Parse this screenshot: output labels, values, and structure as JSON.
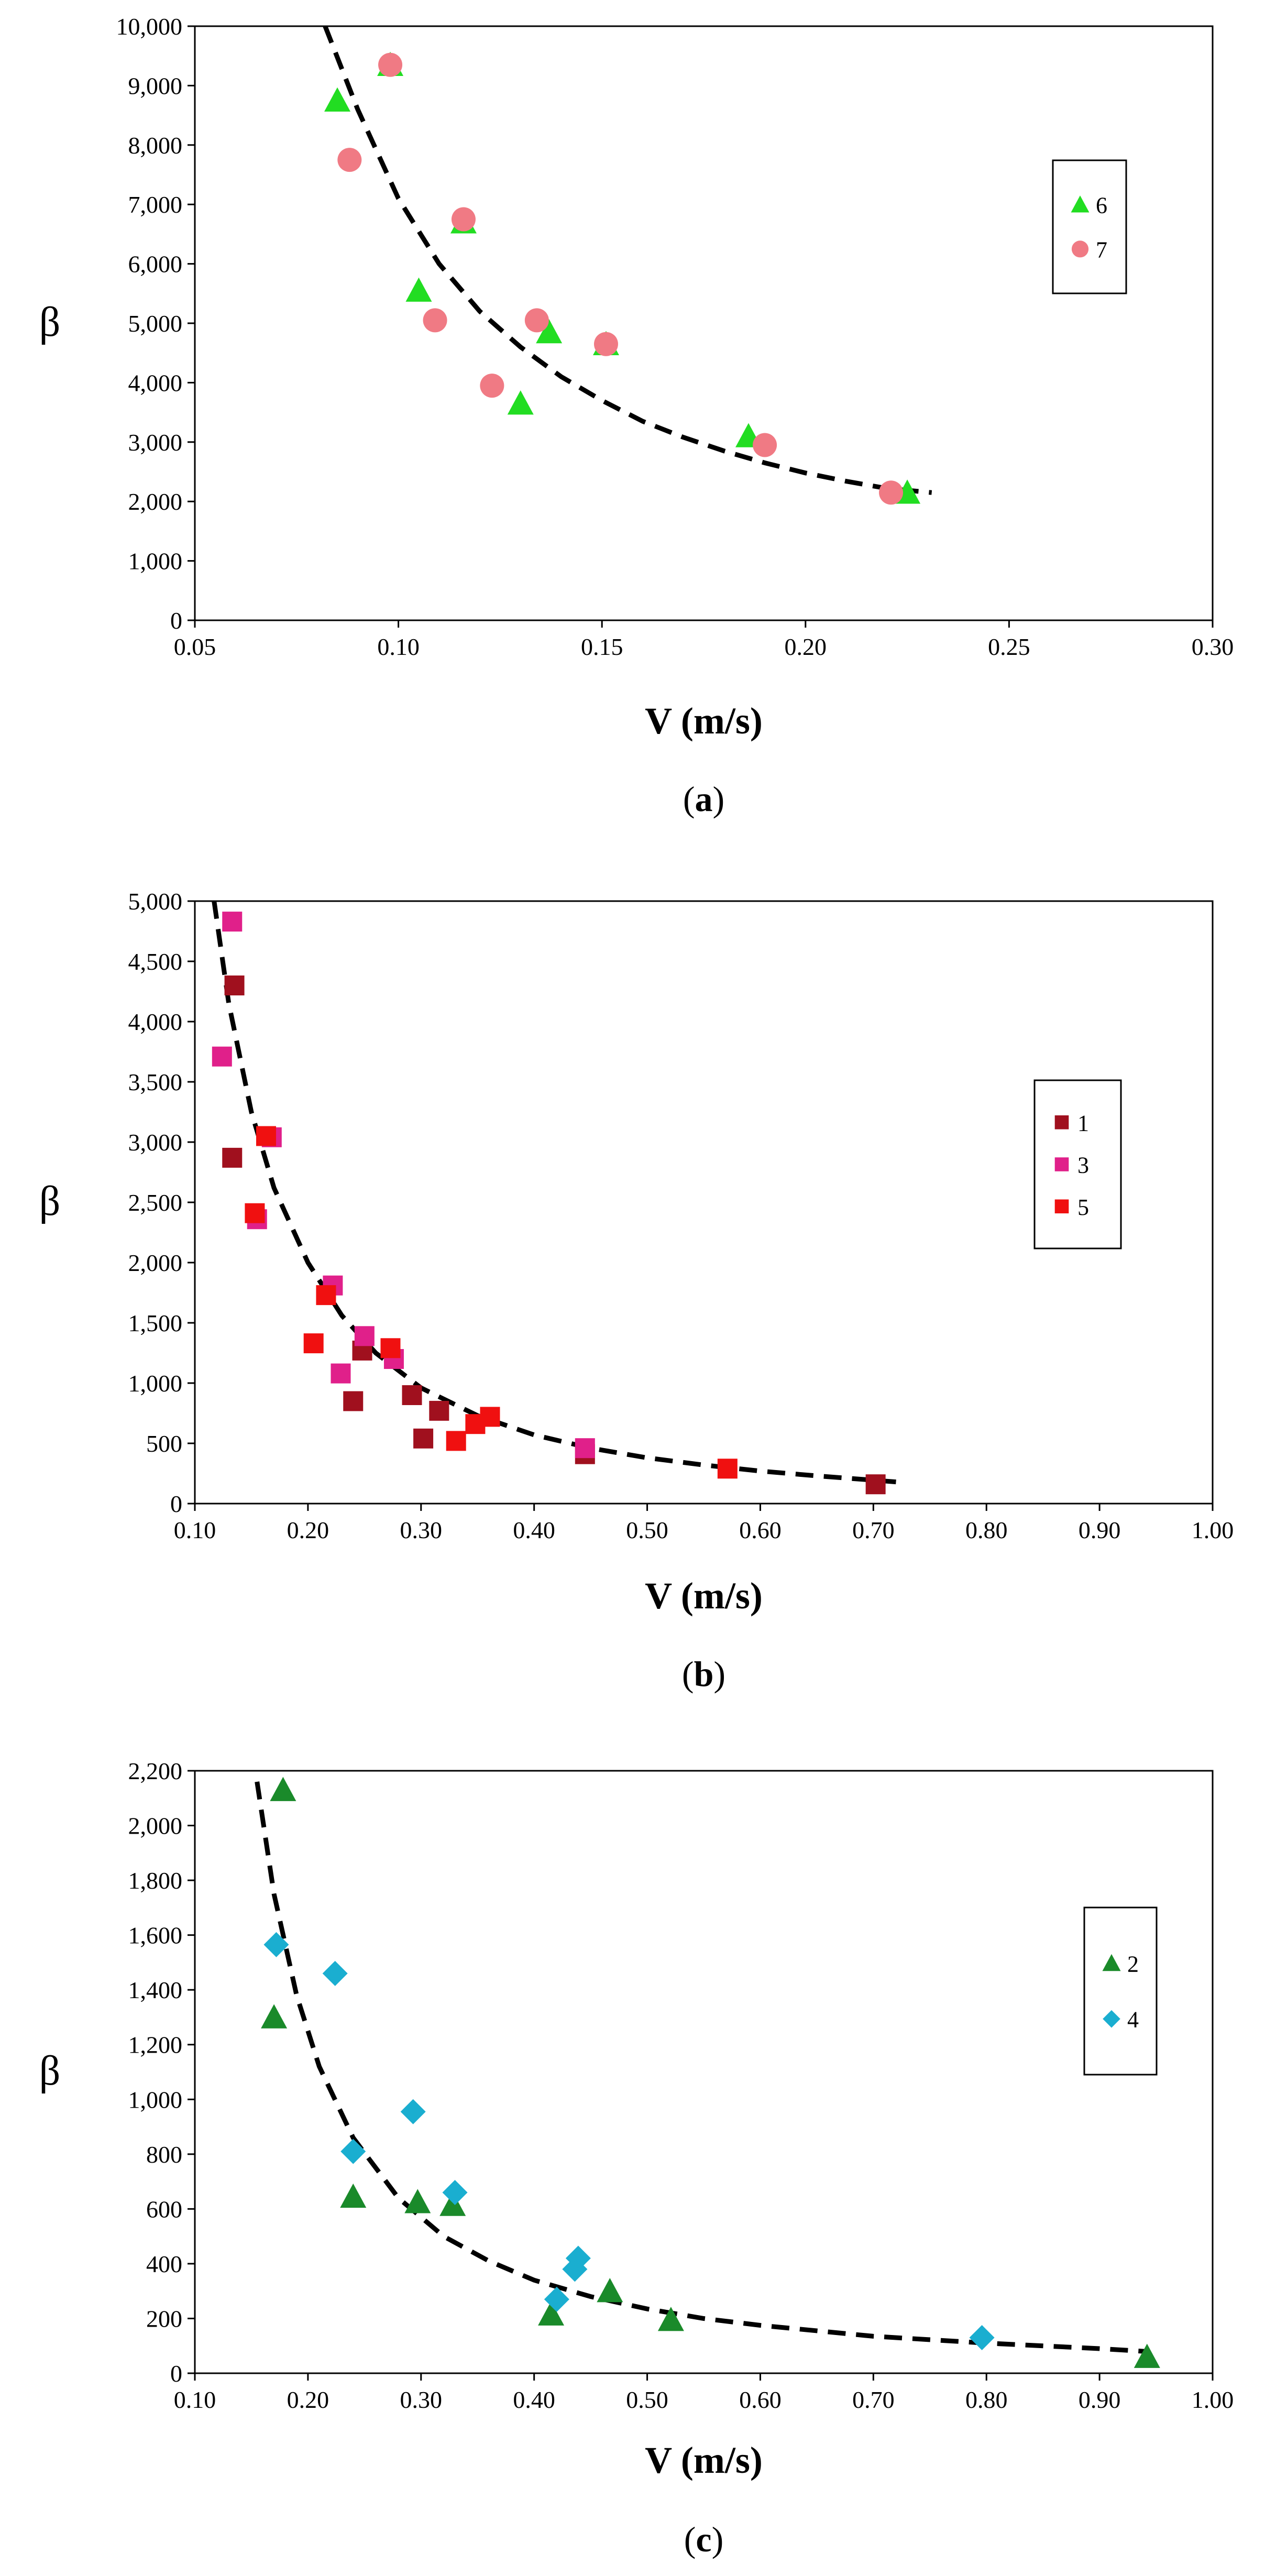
{
  "figure": {
    "panels": [
      {
        "id": "a",
        "label": "(a)",
        "letter": "a"
      },
      {
        "id": "b",
        "label": "(b)",
        "letter": "b"
      },
      {
        "id": "c",
        "label": "(c)",
        "letter": "c"
      }
    ]
  },
  "chart_data": [
    {
      "panel": "(a)",
      "type": "scatter",
      "xlabel": "V (m/s)",
      "ylabel": "β",
      "xlim": [
        0.05,
        0.3
      ],
      "ylim": [
        0,
        10000
      ],
      "xticks": [
        0.05,
        0.1,
        0.15,
        0.2,
        0.25,
        0.3
      ],
      "yticks": [
        0,
        1000,
        2000,
        3000,
        4000,
        5000,
        6000,
        7000,
        8000,
        9000,
        10000
      ],
      "xdec": 2,
      "legend_position": "right",
      "series": [
        {
          "name": "6",
          "marker": "triangle",
          "color": "#22dd22",
          "points": [
            [
              0.085,
              8750
            ],
            [
              0.098,
              9350
            ],
            [
              0.105,
              5550
            ],
            [
              0.116,
              6700
            ],
            [
              0.13,
              3650
            ],
            [
              0.137,
              4850
            ],
            [
              0.151,
              4650
            ],
            [
              0.186,
              3100
            ],
            [
              0.225,
              2150
            ]
          ]
        },
        {
          "name": "7",
          "marker": "circle",
          "color": "#f07a84",
          "points": [
            [
              0.088,
              7750
            ],
            [
              0.098,
              9350
            ],
            [
              0.109,
              5050
            ],
            [
              0.116,
              6750
            ],
            [
              0.123,
              3950
            ],
            [
              0.134,
              5050
            ],
            [
              0.151,
              4650
            ],
            [
              0.19,
              2950
            ],
            [
              0.221,
              2150
            ]
          ]
        }
      ],
      "trend": {
        "style": "dashed",
        "color": "#000000",
        "x_range": [
          0.082,
          0.231
        ],
        "points": [
          [
            0.082,
            10000
          ],
          [
            0.09,
            8600
          ],
          [
            0.1,
            7100
          ],
          [
            0.11,
            6000
          ],
          [
            0.12,
            5200
          ],
          [
            0.13,
            4600
          ],
          [
            0.14,
            4100
          ],
          [
            0.15,
            3700
          ],
          [
            0.16,
            3350
          ],
          [
            0.17,
            3080
          ],
          [
            0.18,
            2850
          ],
          [
            0.19,
            2650
          ],
          [
            0.2,
            2480
          ],
          [
            0.21,
            2340
          ],
          [
            0.22,
            2220
          ],
          [
            0.231,
            2150
          ]
        ]
      }
    },
    {
      "panel": "(b)",
      "type": "scatter",
      "xlabel": "V (m/s)",
      "ylabel": "β",
      "xlim": [
        0.1,
        1.0
      ],
      "ylim": [
        0,
        5000
      ],
      "xticks": [
        0.1,
        0.2,
        0.3,
        0.4,
        0.5,
        0.6,
        0.7,
        0.8,
        0.9,
        1.0
      ],
      "yticks": [
        0,
        500,
        1000,
        1500,
        2000,
        2500,
        3000,
        3500,
        4000,
        4500,
        5000
      ],
      "xdec": 2,
      "legend_position": "right",
      "series": [
        {
          "name": "1",
          "marker": "square",
          "color": "#a0101e",
          "points": [
            [
              0.135,
              4300
            ],
            [
              0.133,
              2870
            ],
            [
              0.24,
              850
            ],
            [
              0.248,
              1270
            ],
            [
              0.292,
              900
            ],
            [
              0.302,
              540
            ],
            [
              0.316,
              770
            ],
            [
              0.445,
              410
            ],
            [
              0.702,
              160
            ]
          ]
        },
        {
          "name": "3",
          "marker": "square",
          "color": "#e0208a",
          "points": [
            [
              0.133,
              4830
            ],
            [
              0.124,
              3710
            ],
            [
              0.168,
              3040
            ],
            [
              0.155,
              2360
            ],
            [
              0.222,
              1810
            ],
            [
              0.229,
              1080
            ],
            [
              0.25,
              1390
            ],
            [
              0.276,
              1200
            ],
            [
              0.445,
              460
            ]
          ]
        },
        {
          "name": "5",
          "marker": "square",
          "color": "#f01010",
          "points": [
            [
              0.163,
              3050
            ],
            [
              0.153,
              2410
            ],
            [
              0.216,
              1730
            ],
            [
              0.205,
              1330
            ],
            [
              0.273,
              1290
            ],
            [
              0.331,
              520
            ],
            [
              0.348,
              660
            ],
            [
              0.361,
              720
            ],
            [
              0.571,
              290
            ]
          ]
        }
      ],
      "trend": {
        "style": "dashed",
        "color": "#000000",
        "x_range": [
          0.117,
          0.72
        ],
        "points": [
          [
            0.117,
            5000
          ],
          [
            0.13,
            4150
          ],
          [
            0.15,
            3250
          ],
          [
            0.17,
            2620
          ],
          [
            0.2,
            2000
          ],
          [
            0.23,
            1560
          ],
          [
            0.26,
            1250
          ],
          [
            0.3,
            960
          ],
          [
            0.35,
            730
          ],
          [
            0.4,
            570
          ],
          [
            0.45,
            460
          ],
          [
            0.5,
            380
          ],
          [
            0.55,
            320
          ],
          [
            0.6,
            270
          ],
          [
            0.65,
            230
          ],
          [
            0.72,
            180
          ]
        ]
      }
    },
    {
      "panel": "(c)",
      "type": "scatter",
      "xlabel": "V (m/s)",
      "ylabel": "β",
      "xlim": [
        0.1,
        1.0
      ],
      "ylim": [
        0,
        2200
      ],
      "xticks": [
        0.1,
        0.2,
        0.3,
        0.4,
        0.5,
        0.6,
        0.7,
        0.8,
        0.9,
        1.0
      ],
      "yticks": [
        0,
        200,
        400,
        600,
        800,
        1000,
        1200,
        1400,
        1600,
        1800,
        2000,
        2200
      ],
      "xdec": 2,
      "legend_position": "right",
      "series": [
        {
          "name": "2",
          "marker": "triangle",
          "color": "#1a8a2a",
          "points": [
            [
              0.178,
              2130
            ],
            [
              0.17,
              1300
            ],
            [
              0.24,
              645
            ],
            [
              0.297,
              625
            ],
            [
              0.328,
              615
            ],
            [
              0.415,
              215
            ],
            [
              0.467,
              300
            ],
            [
              0.521,
              195
            ],
            [
              0.942,
              60
            ]
          ]
        },
        {
          "name": "4",
          "marker": "diamond",
          "color": "#1aaed0",
          "points": [
            [
              0.172,
              1565
            ],
            [
              0.224,
              1460
            ],
            [
              0.24,
              810
            ],
            [
              0.293,
              955
            ],
            [
              0.33,
              660
            ],
            [
              0.42,
              270
            ],
            [
              0.436,
              380
            ],
            [
              0.439,
              420
            ],
            [
              0.796,
              130
            ]
          ]
        }
      ],
      "trend": {
        "style": "dashed",
        "color": "#000000",
        "x_range": [
          0.155,
          0.94
        ],
        "points": [
          [
            0.155,
            2160
          ],
          [
            0.17,
            1750
          ],
          [
            0.19,
            1380
          ],
          [
            0.21,
            1120
          ],
          [
            0.24,
            860
          ],
          [
            0.28,
            640
          ],
          [
            0.32,
            500
          ],
          [
            0.36,
            410
          ],
          [
            0.4,
            340
          ],
          [
            0.45,
            280
          ],
          [
            0.5,
            235
          ],
          [
            0.55,
            200
          ],
          [
            0.6,
            175
          ],
          [
            0.7,
            135
          ],
          [
            0.8,
            110
          ],
          [
            0.9,
            90
          ],
          [
            0.94,
            80
          ]
        ]
      }
    }
  ]
}
